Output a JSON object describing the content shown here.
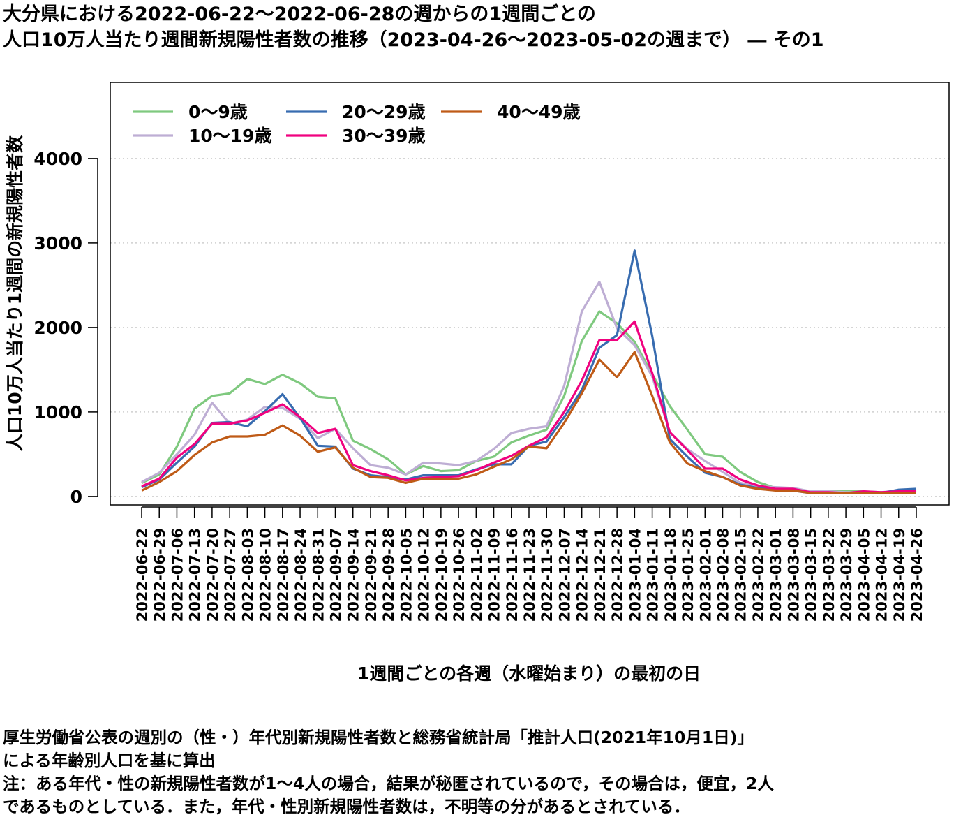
{
  "title_lines": [
    "大分県における2022-06-22〜2022-06-28の週からの1週間ごとの",
    "人口10万人当たり週間新規陽性者数の推移（2023-04-26〜2023-05-02の週まで） ― その1"
  ],
  "notes": [
    "厚生労働省公表の週別の（性・）年代別新規陽性者数と総務省統計局「推計人口(2021年10月1日)」",
    "による年齢別人口を基に算出",
    "注：ある年代・性の新規陽性者数が1〜4人の場合，結果が秘匿されているので，その場合は，便宜，2人",
    "であるものとしている．また，年代・性別新規陽性者数は，不明等の分があるとされている．"
  ],
  "chart_data": {
    "type": "line",
    "xlabel": "1週間ごとの各週（水曜始まり）の最初の日",
    "ylabel": "人口10万人当たり1週間の新規陽性者数",
    "ylim": [
      -100,
      4900
    ],
    "yticks": [
      0,
      1000,
      2000,
      3000,
      4000
    ],
    "grid": "horizontal-dotted",
    "legend_position": "top-left",
    "x": [
      "2022-06-22",
      "2022-06-29",
      "2022-07-06",
      "2022-07-13",
      "2022-07-20",
      "2022-07-27",
      "2022-08-03",
      "2022-08-10",
      "2022-08-17",
      "2022-08-24",
      "2022-08-31",
      "2022-09-07",
      "2022-09-14",
      "2022-09-21",
      "2022-09-28",
      "2022-10-05",
      "2022-10-12",
      "2022-10-19",
      "2022-10-26",
      "2022-11-02",
      "2022-11-09",
      "2022-11-16",
      "2022-11-23",
      "2022-11-30",
      "2022-12-07",
      "2022-12-14",
      "2022-12-21",
      "2022-12-28",
      "2023-01-04",
      "2023-01-11",
      "2023-01-18",
      "2023-01-25",
      "2023-02-01",
      "2023-02-08",
      "2023-02-15",
      "2023-02-22",
      "2023-03-01",
      "2023-03-08",
      "2023-03-15",
      "2023-03-22",
      "2023-03-29",
      "2023-04-05",
      "2023-04-12",
      "2023-04-19",
      "2023-04-26"
    ],
    "series": [
      {
        "name": "0〜9歳",
        "color": "#7fc97f",
        "values": [
          160,
          260,
          590,
          1040,
          1190,
          1220,
          1390,
          1330,
          1440,
          1340,
          1180,
          1160,
          660,
          560,
          440,
          260,
          360,
          300,
          310,
          420,
          470,
          640,
          720,
          790,
          1190,
          1840,
          2190,
          2050,
          1830,
          1450,
          1070,
          790,
          500,
          470,
          290,
          170,
          100,
          90,
          60,
          60,
          60,
          60,
          50,
          60,
          70
        ]
      },
      {
        "name": "10〜19歳",
        "color": "#beaed4",
        "values": [
          170,
          280,
          500,
          730,
          1110,
          860,
          910,
          1060,
          1050,
          920,
          690,
          800,
          570,
          370,
          340,
          260,
          400,
          390,
          370,
          420,
          560,
          750,
          800,
          830,
          1310,
          2190,
          2540,
          1990,
          1790,
          1420,
          760,
          560,
          420,
          290,
          160,
          120,
          110,
          100,
          60,
          60,
          50,
          50,
          50,
          70,
          80
        ]
      },
      {
        "name": "20〜29歳",
        "color": "#386cb0",
        "values": [
          110,
          200,
          400,
          590,
          870,
          880,
          830,
          1010,
          1210,
          930,
          600,
          590,
          330,
          250,
          230,
          200,
          250,
          250,
          250,
          320,
          380,
          380,
          600,
          650,
          940,
          1260,
          1760,
          1910,
          2910,
          1900,
          680,
          470,
          280,
          230,
          140,
          100,
          80,
          70,
          40,
          40,
          40,
          50,
          40,
          80,
          90
        ]
      },
      {
        "name": "30〜39歳",
        "color": "#f0027f",
        "values": [
          120,
          210,
          460,
          620,
          860,
          860,
          900,
          990,
          1090,
          940,
          750,
          800,
          370,
          300,
          250,
          190,
          220,
          230,
          240,
          310,
          400,
          480,
          600,
          700,
          1000,
          1370,
          1850,
          1850,
          2070,
          1460,
          760,
          550,
          330,
          330,
          200,
          130,
          90,
          90,
          50,
          50,
          40,
          60,
          50,
          60,
          60
        ]
      },
      {
        "name": "40〜49歳",
        "color": "#bf5b17",
        "values": [
          70,
          170,
          300,
          490,
          640,
          710,
          710,
          730,
          840,
          720,
          530,
          580,
          340,
          230,
          220,
          160,
          210,
          210,
          210,
          260,
          350,
          440,
          590,
          570,
          870,
          1220,
          1620,
          1410,
          1710,
          1190,
          640,
          390,
          300,
          230,
          130,
          90,
          70,
          70,
          40,
          40,
          40,
          40,
          40,
          40,
          40
        ]
      }
    ]
  }
}
